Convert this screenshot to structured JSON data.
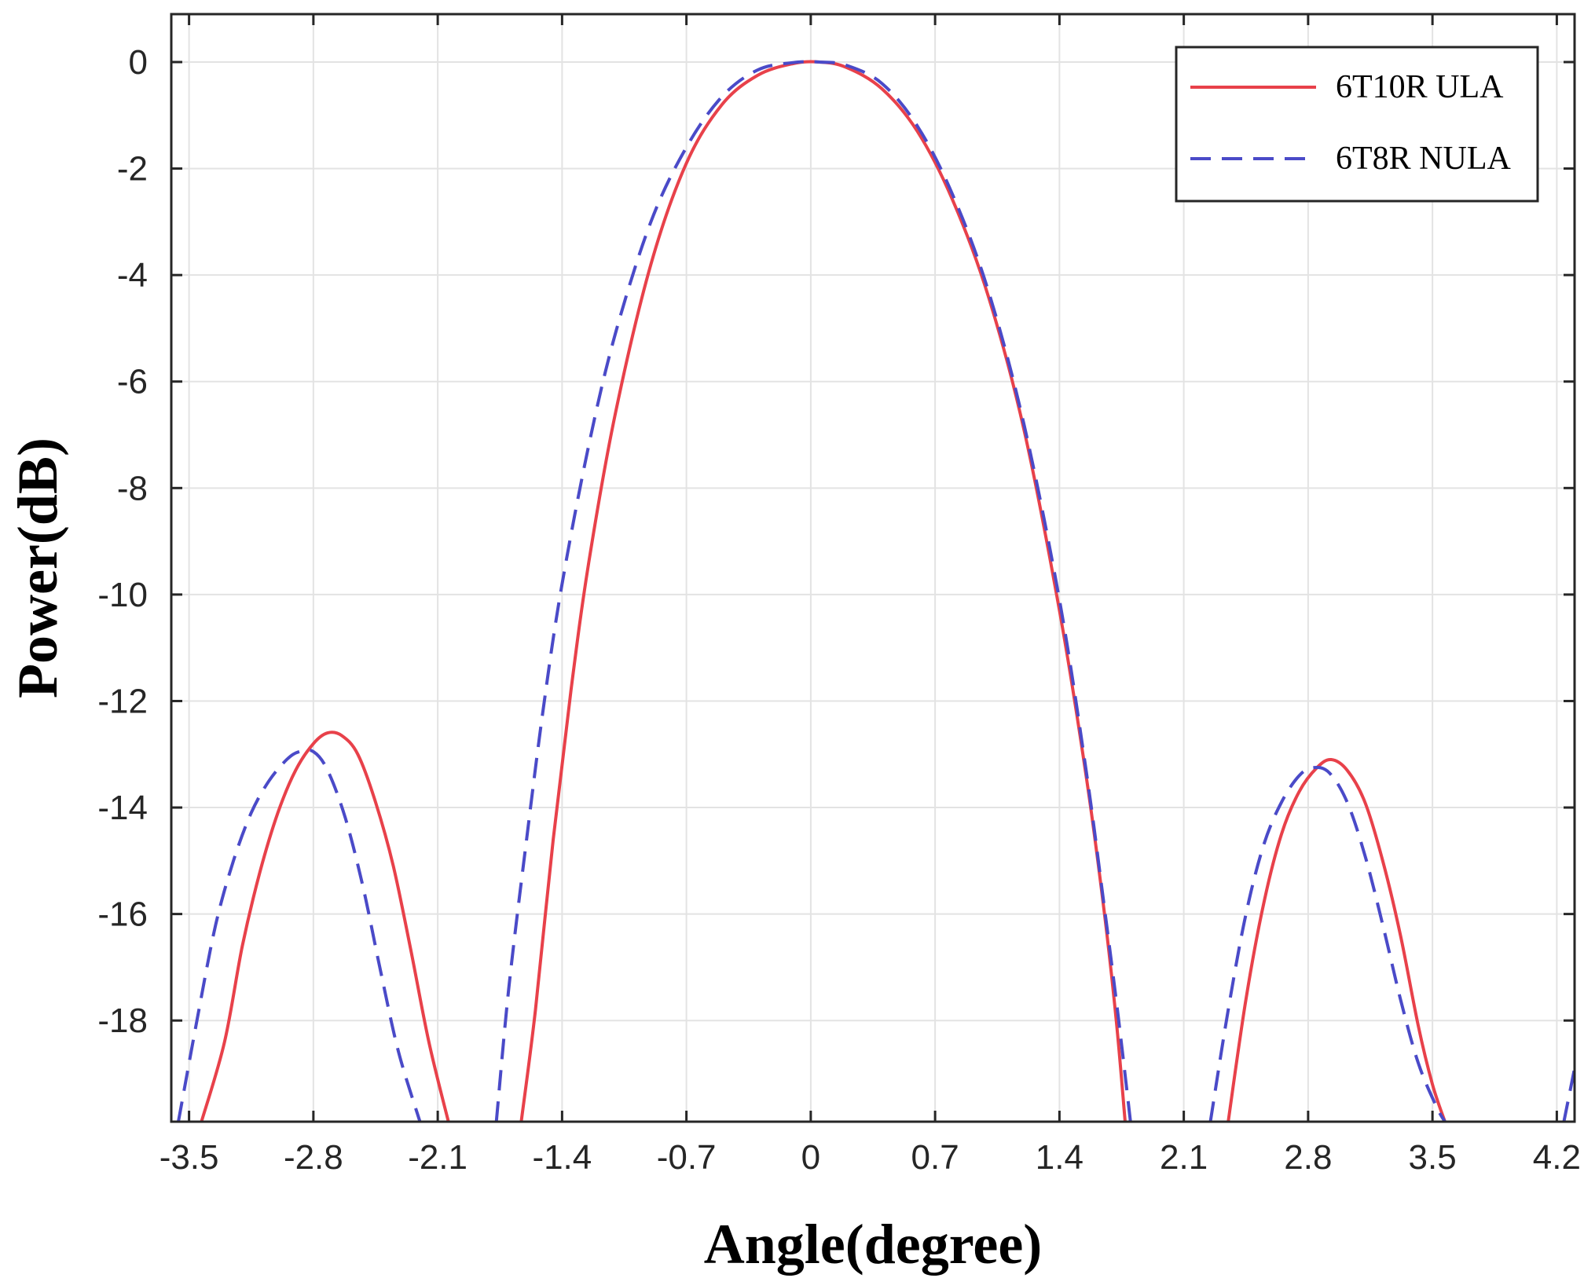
{
  "chart_data": {
    "type": "line",
    "title": "",
    "xlabel": "Angle(degree)",
    "ylabel": "Power(dB)",
    "xlim": [
      -3.6,
      4.3
    ],
    "ylim": [
      -19.9,
      0.9
    ],
    "x_ticks": [
      "-3.5",
      "-2.8",
      "-2.1",
      "-1.4",
      "-0.7",
      "0",
      "0.7",
      "1.4",
      "2.1",
      "2.8",
      "3.5",
      "4.2"
    ],
    "y_ticks": [
      "0",
      "-2",
      "-4",
      "-6",
      "-8",
      "-10",
      "-12",
      "-14",
      "-16",
      "-18"
    ],
    "grid": true,
    "legend_position": "top-right",
    "series": [
      {
        "name": "6T10R ULA",
        "color": "#e8414a",
        "dash": "solid",
        "segments": [
          {
            "x": [
              -3.43,
              -3.3,
              -3.2,
              -3.1,
              -3.0,
              -2.9,
              -2.8,
              -2.72,
              -2.64,
              -2.55,
              -2.45,
              -2.35,
              -2.25,
              -2.15,
              -2.04
            ],
            "y": [
              -19.9,
              -18.4,
              -16.6,
              -15.2,
              -14.1,
              -13.3,
              -12.8,
              -12.6,
              -12.65,
              -13.0,
              -13.9,
              -15.1,
              -16.7,
              -18.4,
              -19.9
            ]
          },
          {
            "x": [
              -1.63,
              -1.55,
              -1.45,
              -1.35,
              -1.25,
              -1.1,
              -0.9,
              -0.7,
              -0.5,
              -0.3,
              -0.1,
              0.05,
              0.2,
              0.4,
              0.6,
              0.8,
              1.0,
              1.2,
              1.4,
              1.55,
              1.65,
              1.72,
              1.77
            ],
            "y": [
              -19.9,
              -17.8,
              -14.6,
              -11.8,
              -9.4,
              -6.6,
              -3.8,
              -1.9,
              -0.8,
              -0.25,
              -0.03,
              0.0,
              -0.1,
              -0.5,
              -1.3,
              -2.6,
              -4.4,
              -6.9,
              -10.3,
              -13.4,
              -15.9,
              -18.0,
              -19.9
            ]
          },
          {
            "x": [
              2.35,
              2.45,
              2.55,
              2.65,
              2.75,
              2.85,
              2.93,
              3.02,
              3.12,
              3.22,
              3.32,
              3.42,
              3.5,
              3.57
            ],
            "y": [
              -19.9,
              -17.6,
              -15.8,
              -14.5,
              -13.7,
              -13.25,
              -13.1,
              -13.3,
              -13.9,
              -15.0,
              -16.4,
              -18.1,
              -19.2,
              -19.9
            ]
          }
        ]
      },
      {
        "name": "6T8R NULA",
        "color": "#4a4ac8",
        "dash": "dashed",
        "segments": [
          {
            "x": [
              -3.56,
              -3.45,
              -3.35,
              -3.25,
              -3.15,
              -3.05,
              -2.95,
              -2.88,
              -2.8,
              -2.72,
              -2.62,
              -2.52,
              -2.42,
              -2.32,
              -2.2
            ],
            "y": [
              -19.9,
              -17.9,
              -16.2,
              -15.0,
              -14.1,
              -13.5,
              -13.1,
              -12.95,
              -12.95,
              -13.3,
              -14.2,
              -15.5,
              -17.1,
              -18.6,
              -19.9
            ]
          },
          {
            "x": [
              -1.77,
              -1.7,
              -1.6,
              -1.5,
              -1.4,
              -1.25,
              -1.1,
              -0.9,
              -0.7,
              -0.5,
              -0.3,
              -0.1,
              0.05,
              0.2,
              0.4,
              0.6,
              0.8,
              1.0,
              1.2,
              1.4,
              1.55,
              1.65,
              1.73,
              1.8
            ],
            "y": [
              -19.9,
              -17.4,
              -14.6,
              -12.0,
              -9.8,
              -7.2,
              -5.1,
              -3.0,
              -1.6,
              -0.65,
              -0.15,
              -0.01,
              0.0,
              -0.06,
              -0.4,
              -1.2,
              -2.5,
              -4.3,
              -6.8,
              -10.1,
              -13.3,
              -15.8,
              -17.9,
              -19.9
            ]
          },
          {
            "x": [
              2.25,
              2.35,
              2.45,
              2.55,
              2.65,
              2.75,
              2.83,
              2.92,
              3.02,
              3.12,
              3.22,
              3.32,
              3.42,
              3.52,
              3.57
            ],
            "y": [
              -19.9,
              -17.8,
              -16.0,
              -14.7,
              -13.9,
              -13.4,
              -13.25,
              -13.35,
              -13.9,
              -14.9,
              -16.2,
              -17.6,
              -18.8,
              -19.6,
              -19.9
            ]
          },
          {
            "x": [
              4.24,
              4.3
            ],
            "y": [
              -19.9,
              -18.9
            ]
          }
        ]
      }
    ]
  }
}
